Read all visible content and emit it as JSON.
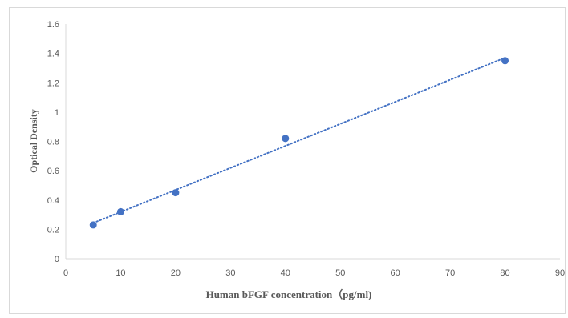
{
  "chart_data": {
    "type": "scatter",
    "title": "",
    "xlabel": "Human bFGF concentration（pg/ml)",
    "ylabel": "Optical Density",
    "xlim": [
      0,
      90
    ],
    "ylim": [
      0,
      1.6
    ],
    "x_ticks": [
      "0",
      "10",
      "20",
      "30",
      "40",
      "50",
      "60",
      "70",
      "80",
      "90"
    ],
    "y_ticks": [
      "0",
      "0.2",
      "0.4",
      "0.6",
      "0.8",
      "1",
      "1.2",
      "1.4",
      "1.6"
    ],
    "grid": false,
    "legend": "none",
    "series": [
      {
        "x": [
          5,
          10,
          20,
          40,
          80
        ],
        "values": [
          0.23,
          0.32,
          0.45,
          0.82,
          1.35
        ],
        "trendline": "linear",
        "trendline_style": "dotted"
      }
    ],
    "colors": {
      "marker": "#4472c4",
      "axis": "#d9d9d9",
      "text": "#595959"
    }
  }
}
